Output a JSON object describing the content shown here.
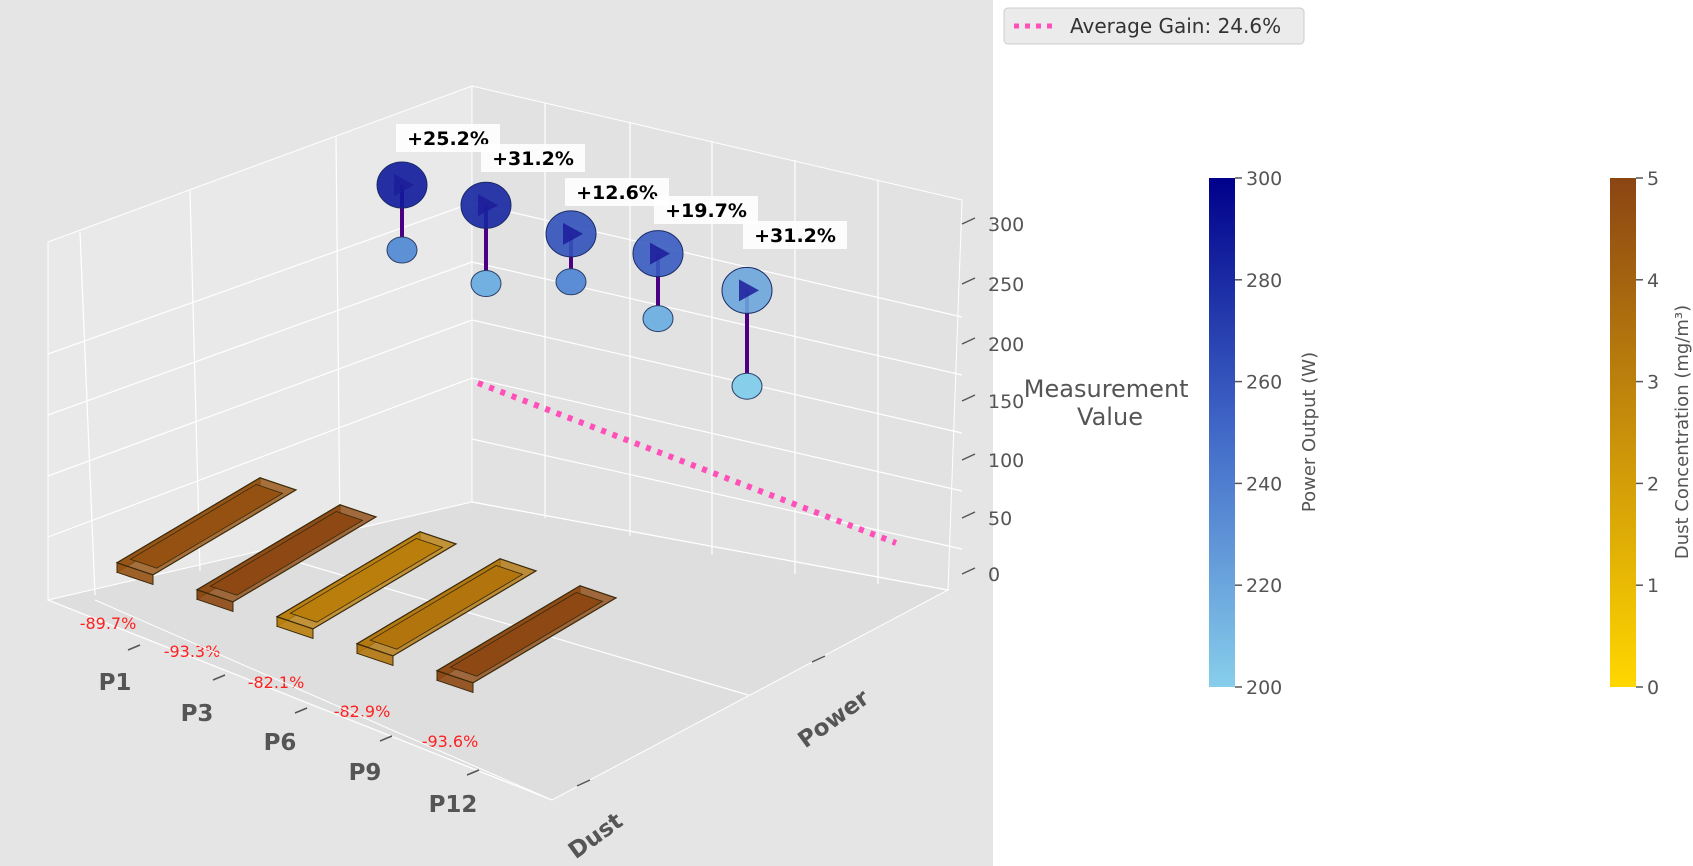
{
  "chart_data": {
    "type": "3d-bar-scatter",
    "title": "",
    "panels": [
      "P1",
      "P3",
      "P6",
      "P9",
      "P12"
    ],
    "y_categories": [
      "Dust",
      "Power"
    ],
    "zlabel": "Measurement Value",
    "zticks": [
      0,
      50,
      100,
      150,
      200,
      250,
      300
    ],
    "zlim": [
      0,
      300
    ],
    "dust_concentration": [
      4.6,
      4.9,
      3.1,
      3.4,
      4.9
    ],
    "dust_reduction_labels": [
      "-89.7%",
      "-93.3%",
      "-82.1%",
      "-82.9%",
      "-93.6%"
    ],
    "power_before": [
      230,
      215,
      232,
      214,
      168
    ],
    "power_after": [
      288,
      282,
      261,
      256,
      220
    ],
    "gain_labels": [
      "+25.2%",
      "+31.2%",
      "+12.6%",
      "+19.7%",
      "+31.2%"
    ],
    "average_line_value": 25,
    "legend": [
      {
        "label": "Average Gain: 24.6%",
        "color": "#ff4fb8",
        "style": "dotted"
      }
    ],
    "colorbars": [
      {
        "label": "Power Output (W)",
        "ticks": [
          200,
          220,
          240,
          260,
          280,
          300
        ],
        "range": [
          200,
          300
        ],
        "colors": [
          "#87ceeb",
          "#4169c8",
          "#00008b"
        ]
      },
      {
        "label": "Dust Concentration (mg/m³)",
        "ticks": [
          0,
          1,
          2,
          3,
          4,
          5
        ],
        "range": [
          0,
          5
        ],
        "colors": [
          "#ffd700",
          "#c8900a",
          "#8b4513"
        ]
      }
    ]
  }
}
